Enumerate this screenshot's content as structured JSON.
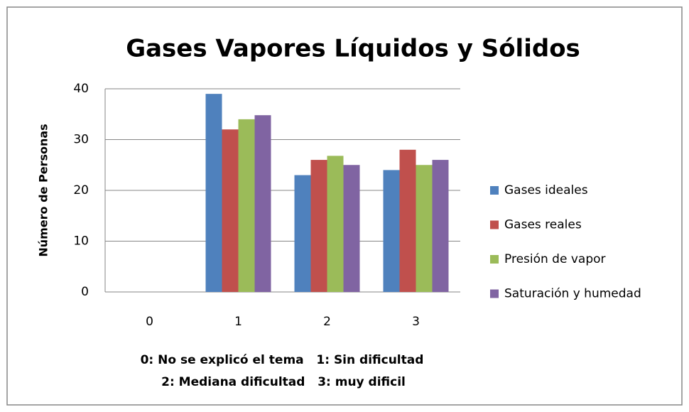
{
  "chart_data": {
    "type": "bar",
    "title": "Gases Vapores Líquidos y Sólidos",
    "ylabel": "Número de Personas",
    "xlabel": [
      "0: No se explicó el tema   1: Sin dificultad",
      "2: Mediana dificultad   3: muy dificil"
    ],
    "categories": [
      "0",
      "1",
      "2",
      "3"
    ],
    "series": [
      {
        "name": "Gases ideales",
        "color": "#4f81bd",
        "values": [
          0,
          39,
          23,
          24
        ]
      },
      {
        "name": "Gases reales",
        "color": "#c0504d",
        "values": [
          0,
          32,
          26,
          28
        ]
      },
      {
        "name": "Presión de vapor",
        "color": "#9bbb59",
        "values": [
          0,
          34,
          26.8,
          25
        ]
      },
      {
        "name": "Saturación y humedad",
        "color": "#8064a2",
        "values": [
          0,
          34.8,
          25,
          26
        ]
      }
    ],
    "ylim": [
      0,
      40
    ],
    "yticks": [
      0,
      10,
      20,
      30,
      40
    ],
    "grid": true,
    "legend": "right"
  }
}
